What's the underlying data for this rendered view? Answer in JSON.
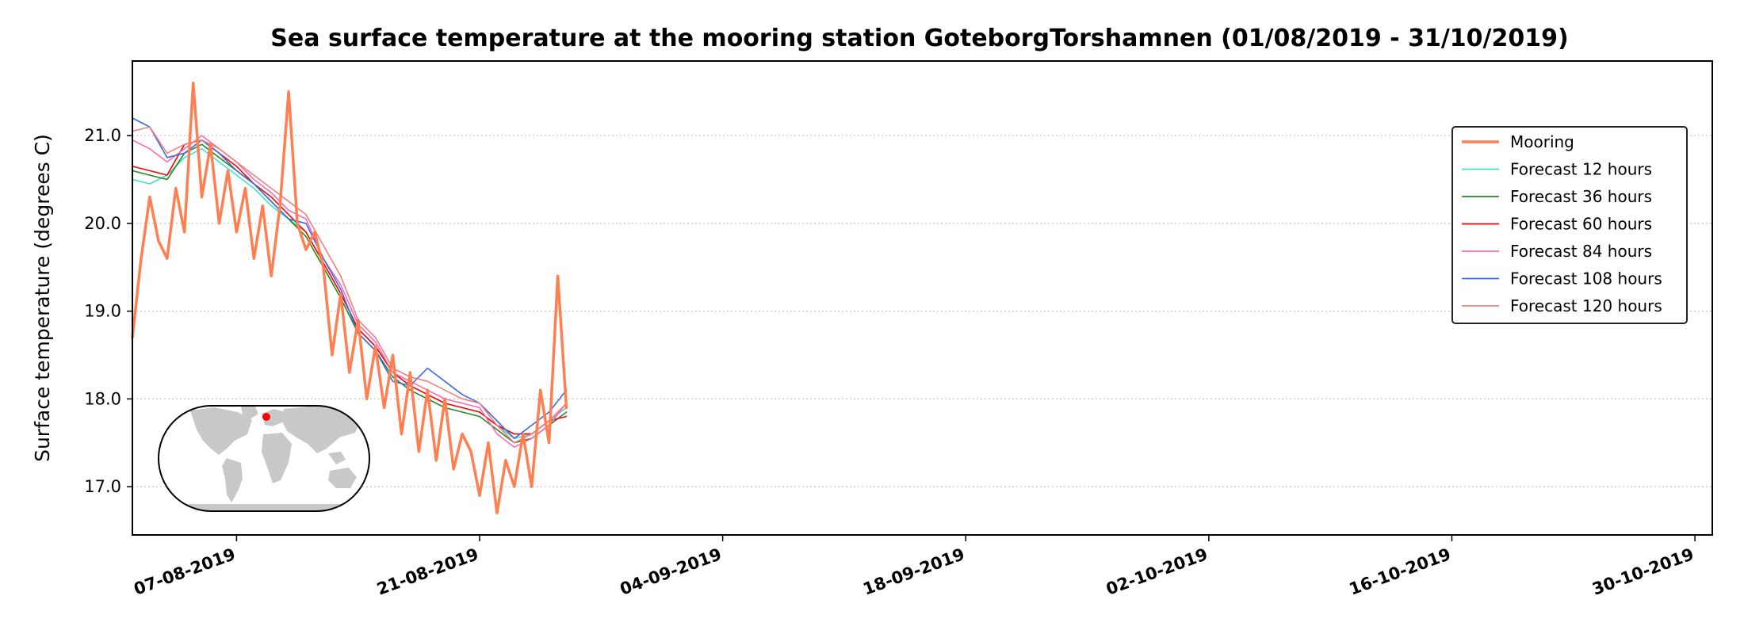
{
  "chart_data": {
    "type": "line",
    "title": "Sea surface temperature at the mooring station GoteborgTorshamnen (01/08/2019 - 31/10/2019)",
    "ylabel": "Surface temperature (degrees C)",
    "xlabel": "",
    "xlim": [
      "2019-08-01",
      "2019-10-31"
    ],
    "ylim": [
      16.45,
      21.85
    ],
    "yticks": [
      17.0,
      18.0,
      19.0,
      20.0,
      21.0
    ],
    "ytick_labels": [
      "17.0",
      "18.0",
      "19.0",
      "20.0",
      "21.0"
    ],
    "xticks": [
      "2019-08-07",
      "2019-08-21",
      "2019-09-04",
      "2019-09-18",
      "2019-10-02",
      "2019-10-16",
      "2019-10-30"
    ],
    "xtick_labels": [
      "07-08-2019",
      "21-08-2019",
      "04-09-2019",
      "18-09-2019",
      "02-10-2019",
      "16-10-2019",
      "30-10-2019"
    ],
    "grid": "horizontal-dotted",
    "legend_position": "right",
    "inset": "world-map-with-station-marker",
    "station_marker_color": "#ff0000",
    "series": [
      {
        "name": "Mooring",
        "color": "#ff7f50",
        "x": [
          "2019-08-01",
          "2019-08-01 12:00",
          "2019-08-02",
          "2019-08-02 12:00",
          "2019-08-03",
          "2019-08-03 12:00",
          "2019-08-04",
          "2019-08-04 12:00",
          "2019-08-05",
          "2019-08-05 12:00",
          "2019-08-06",
          "2019-08-06 12:00",
          "2019-08-07",
          "2019-08-07 12:00",
          "2019-08-08",
          "2019-08-08 12:00",
          "2019-08-09",
          "2019-08-09 12:00",
          "2019-08-10",
          "2019-08-10 12:00",
          "2019-08-11",
          "2019-08-11 12:00",
          "2019-08-12",
          "2019-08-12 12:00",
          "2019-08-13",
          "2019-08-13 12:00",
          "2019-08-14",
          "2019-08-14 12:00",
          "2019-08-15",
          "2019-08-15 12:00",
          "2019-08-16",
          "2019-08-16 12:00",
          "2019-08-17",
          "2019-08-17 12:00",
          "2019-08-18",
          "2019-08-18 12:00",
          "2019-08-19",
          "2019-08-19 12:00",
          "2019-08-20",
          "2019-08-20 12:00",
          "2019-08-21",
          "2019-08-21 12:00",
          "2019-08-22",
          "2019-08-22 12:00",
          "2019-08-23",
          "2019-08-23 12:00",
          "2019-08-24",
          "2019-08-24 12:00",
          "2019-08-25",
          "2019-08-25 12:00",
          "2019-08-26"
        ],
        "values": [
          18.7,
          19.6,
          20.3,
          19.8,
          19.6,
          20.4,
          19.9,
          21.6,
          20.3,
          20.9,
          20.0,
          20.6,
          19.9,
          20.4,
          19.6,
          20.2,
          19.4,
          20.2,
          21.5,
          20.0,
          19.7,
          19.9,
          19.5,
          18.5,
          19.2,
          18.3,
          18.9,
          18.0,
          18.6,
          17.9,
          18.5,
          17.6,
          18.3,
          17.4,
          18.1,
          17.3,
          18.0,
          17.2,
          17.6,
          17.4,
          16.9,
          17.5,
          16.7,
          17.3,
          17.0,
          17.6,
          17.0,
          18.1,
          17.5,
          19.4,
          17.9
        ]
      },
      {
        "name": "Forecast 12 hours",
        "color": "#40e0d0",
        "x": [
          "2019-08-01",
          "2019-08-02",
          "2019-08-03",
          "2019-08-04",
          "2019-08-05",
          "2019-08-06",
          "2019-08-07",
          "2019-08-08",
          "2019-08-09",
          "2019-08-10",
          "2019-08-11",
          "2019-08-12",
          "2019-08-13",
          "2019-08-14",
          "2019-08-15",
          "2019-08-16",
          "2019-08-17",
          "2019-08-18",
          "2019-08-19",
          "2019-08-20",
          "2019-08-21",
          "2019-08-22",
          "2019-08-23",
          "2019-08-24",
          "2019-08-25",
          "2019-08-26"
        ],
        "values": [
          20.5,
          20.45,
          20.55,
          20.75,
          20.85,
          20.7,
          20.55,
          20.4,
          20.2,
          20.05,
          19.9,
          19.55,
          19.2,
          18.8,
          18.6,
          18.3,
          18.15,
          18.05,
          17.95,
          17.9,
          17.85,
          17.7,
          17.55,
          17.6,
          17.75,
          17.9
        ]
      },
      {
        "name": "Forecast 36 hours",
        "color": "#228b22",
        "x": [
          "2019-08-01",
          "2019-08-02",
          "2019-08-03",
          "2019-08-04",
          "2019-08-05",
          "2019-08-06",
          "2019-08-07",
          "2019-08-08",
          "2019-08-09",
          "2019-08-10",
          "2019-08-11",
          "2019-08-12",
          "2019-08-13",
          "2019-08-14",
          "2019-08-15",
          "2019-08-16",
          "2019-08-17",
          "2019-08-18",
          "2019-08-19",
          "2019-08-20",
          "2019-08-21",
          "2019-08-22",
          "2019-08-23",
          "2019-08-24",
          "2019-08-25",
          "2019-08-26"
        ],
        "values": [
          20.6,
          20.55,
          20.5,
          20.8,
          20.9,
          20.75,
          20.6,
          20.45,
          20.25,
          20.05,
          19.85,
          19.5,
          19.15,
          18.75,
          18.55,
          18.25,
          18.1,
          18.0,
          17.9,
          17.85,
          17.8,
          17.65,
          17.5,
          17.55,
          17.7,
          17.85
        ]
      },
      {
        "name": "Forecast 60 hours",
        "color": "#ff0000",
        "x": [
          "2019-08-01",
          "2019-08-02",
          "2019-08-03",
          "2019-08-04",
          "2019-08-05",
          "2019-08-06",
          "2019-08-07",
          "2019-08-08",
          "2019-08-09",
          "2019-08-10",
          "2019-08-11",
          "2019-08-12",
          "2019-08-13",
          "2019-08-14",
          "2019-08-15",
          "2019-08-16",
          "2019-08-17",
          "2019-08-18",
          "2019-08-19",
          "2019-08-20",
          "2019-08-21",
          "2019-08-22",
          "2019-08-23",
          "2019-08-24",
          "2019-08-25",
          "2019-08-26"
        ],
        "values": [
          20.65,
          20.6,
          20.55,
          20.9,
          20.95,
          20.8,
          20.65,
          20.45,
          20.3,
          20.1,
          19.9,
          19.55,
          19.2,
          18.8,
          18.6,
          18.3,
          18.15,
          18.05,
          17.95,
          17.9,
          17.85,
          17.7,
          17.6,
          17.6,
          17.75,
          17.8
        ]
      },
      {
        "name": "Forecast 84 hours",
        "color": "#ff69b4",
        "x": [
          "2019-08-01",
          "2019-08-02",
          "2019-08-03",
          "2019-08-04",
          "2019-08-05",
          "2019-08-06",
          "2019-08-07",
          "2019-08-08",
          "2019-08-09",
          "2019-08-10",
          "2019-08-11",
          "2019-08-12",
          "2019-08-13",
          "2019-08-14",
          "2019-08-15",
          "2019-08-16",
          "2019-08-17",
          "2019-08-18",
          "2019-08-19",
          "2019-08-20",
          "2019-08-21",
          "2019-08-22",
          "2019-08-23",
          "2019-08-24",
          "2019-08-25",
          "2019-08-26"
        ],
        "values": [
          20.95,
          20.85,
          20.7,
          20.85,
          21.0,
          20.85,
          20.7,
          20.5,
          20.35,
          20.15,
          20.05,
          19.6,
          19.3,
          18.85,
          18.65,
          18.3,
          18.2,
          18.1,
          18.0,
          17.95,
          17.9,
          17.6,
          17.45,
          17.55,
          17.7,
          17.95
        ]
      },
      {
        "name": "Forecast 108 hours",
        "color": "#4169e1",
        "x": [
          "2019-08-01",
          "2019-08-02",
          "2019-08-03",
          "2019-08-04",
          "2019-08-05",
          "2019-08-06",
          "2019-08-07",
          "2019-08-08",
          "2019-08-09",
          "2019-08-10",
          "2019-08-11",
          "2019-08-12",
          "2019-08-13",
          "2019-08-14",
          "2019-08-15",
          "2019-08-16",
          "2019-08-17",
          "2019-08-18",
          "2019-08-19",
          "2019-08-20",
          "2019-08-21",
          "2019-08-22",
          "2019-08-23",
          "2019-08-24",
          "2019-08-25",
          "2019-08-26"
        ],
        "values": [
          21.2,
          21.1,
          20.75,
          20.8,
          20.95,
          20.8,
          20.6,
          20.45,
          20.25,
          20.05,
          20.0,
          19.6,
          19.25,
          18.75,
          18.55,
          18.2,
          18.15,
          18.35,
          18.2,
          18.05,
          17.95,
          17.75,
          17.55,
          17.7,
          17.85,
          18.1
        ]
      },
      {
        "name": "Forecast 120 hours",
        "color": "#f08080",
        "x": [
          "2019-08-01",
          "2019-08-02",
          "2019-08-03",
          "2019-08-04",
          "2019-08-05",
          "2019-08-06",
          "2019-08-07",
          "2019-08-08",
          "2019-08-09",
          "2019-08-10",
          "2019-08-11",
          "2019-08-12",
          "2019-08-13",
          "2019-08-14",
          "2019-08-15",
          "2019-08-16",
          "2019-08-17",
          "2019-08-18",
          "2019-08-19",
          "2019-08-20",
          "2019-08-21",
          "2019-08-22",
          "2019-08-23",
          "2019-08-24",
          "2019-08-25",
          "2019-08-26"
        ],
        "values": [
          21.05,
          21.1,
          20.8,
          20.9,
          20.95,
          20.85,
          20.7,
          20.55,
          20.4,
          20.25,
          20.1,
          19.75,
          19.4,
          18.9,
          18.7,
          18.35,
          18.25,
          18.2,
          18.1,
          18.0,
          17.95,
          17.7,
          17.5,
          17.6,
          17.75,
          17.95
        ]
      }
    ]
  }
}
